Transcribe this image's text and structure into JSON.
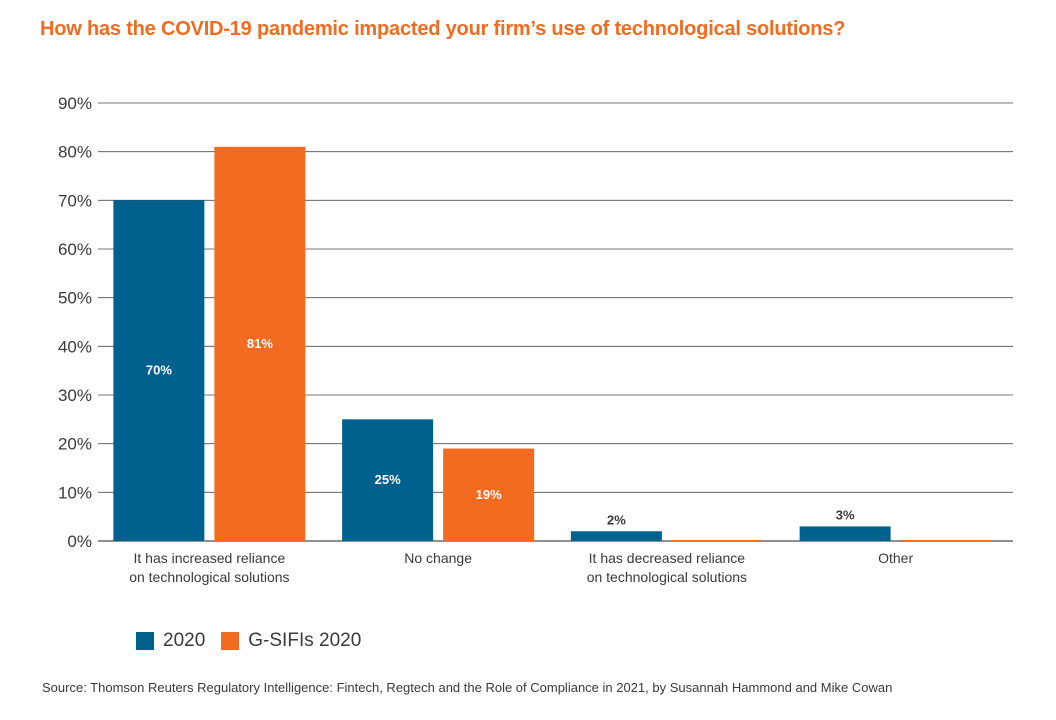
{
  "colors": {
    "series_2020": "#00618f",
    "series_gsifi": "#f26b21",
    "title": "#f26b21",
    "grid": "#4d4d4d",
    "text": "#3a3a3a"
  },
  "chart_data": {
    "type": "bar",
    "title": "How has the COVID-19 pandemic impacted your firm’s use of technological solutions?",
    "categories": [
      [
        "It has increased reliance",
        "on technological solutions"
      ],
      [
        "No change"
      ],
      [
        "It has decreased reliance",
        "on technological solutions"
      ],
      [
        "Other"
      ]
    ],
    "series": [
      {
        "name": "2020",
        "values": [
          70,
          25,
          2,
          3
        ],
        "labels": [
          "70%",
          "25%",
          "2%",
          "3%"
        ]
      },
      {
        "name": "G-SIFIs 2020",
        "values": [
          81,
          19,
          0,
          0
        ],
        "labels": [
          "81%",
          "19%",
          "",
          ""
        ]
      }
    ],
    "ylim": [
      0,
      90
    ],
    "yticks": [
      "0%",
      "10%",
      "20%",
      "30%",
      "40%",
      "50%",
      "60%",
      "70%",
      "80%",
      "90%"
    ],
    "xlabel": "",
    "ylabel": "",
    "grid": true,
    "legend": "bottom-left"
  },
  "legend": {
    "items": [
      "2020",
      "G-SIFIs 2020"
    ]
  },
  "source": "Source: Thomson Reuters Regulatory Intelligence: Fintech, Regtech and the Role of Compliance in 2021, by Susannah Hammond and Mike Cowan"
}
